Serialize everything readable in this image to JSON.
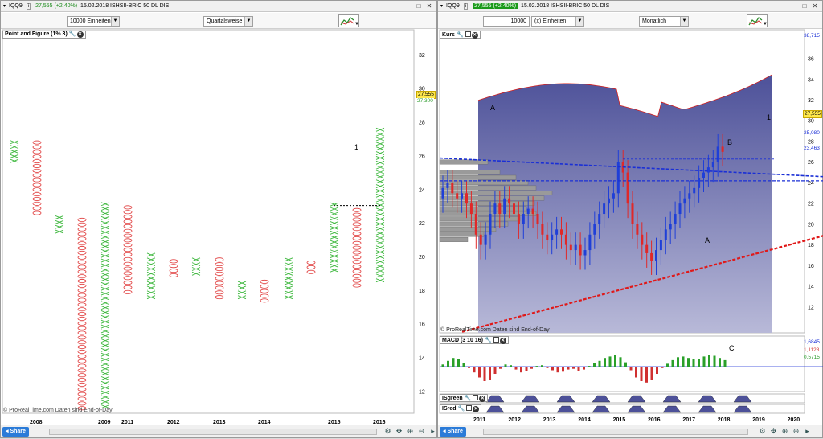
{
  "left": {
    "symbol": "IQQ9",
    "change": "27,555 (+2,40%)",
    "title": "15.02.2018 ISHSII-BRIC 50 DL DIS",
    "units": "10000 Einheiten",
    "period": "Quartalsweise",
    "panel_label": "Point and Figure (1% 3)",
    "copyright": "© ProRealTime.com  Daten sind End-of-Day",
    "price_last": "27,555",
    "price_other": "27,300",
    "share": "Share",
    "annotation": "1"
  },
  "right": {
    "symbol": "IQQ9",
    "change": "27,555 (+2,40%)",
    "title": "15.02.2018 ISHSII-BRIC 50 DL DIS",
    "units_value": "10000",
    "units_label": "(x) Einheiten",
    "period": "Monatlich",
    "panel_kurs": "Kurs",
    "panel_macd": "MACD (3 10 16)",
    "panel_isgreen": "ISgreen",
    "panel_isred": "ISred",
    "copyright": "© ProRealTime.com  Daten sind End-of-Day",
    "price_top": "38,715",
    "price_last": "27,555",
    "price_mid": "25,080",
    "price_low": "23,463",
    "macd_a": "1,6845",
    "macd_b": "1,1128",
    "macd_c": "0,5715",
    "share": "Share",
    "ann_A1": "A",
    "ann_A2": "A",
    "ann_1": "1",
    "ann_B": "B",
    "ann_C": "C"
  },
  "colors": {
    "x_col": "#3fb83f",
    "o_col": "#e03a3a",
    "blue_line": "#1a2fd6",
    "red_line": "#e01818",
    "cloud": "#5b5fa0"
  },
  "chart_data": [
    {
      "type": "point-and-figure",
      "title": "Point and Figure (1% 3)",
      "y_ticks": [
        12,
        14,
        16,
        18,
        20,
        22,
        24,
        26,
        28,
        30,
        32
      ],
      "x_ticks": [
        "2008",
        "2009",
        "2011",
        "2012",
        "2013",
        "2014",
        "2015",
        "2016"
      ],
      "ylim": [
        10.7,
        33.5
      ],
      "columns": [
        {
          "kind": "X",
          "low": 25.7,
          "high": 26.9
        },
        {
          "kind": "O",
          "low": 22.6,
          "high": 26.8
        },
        {
          "kind": "X",
          "low": 21.5,
          "high": 22.6
        },
        {
          "kind": "O",
          "low": 11.0,
          "high": 22.4
        },
        {
          "kind": "X",
          "low": 11.1,
          "high": 23.2
        },
        {
          "kind": "O",
          "low": 17.9,
          "high": 23.0
        },
        {
          "kind": "X",
          "low": 17.6,
          "high": 20.2
        },
        {
          "kind": "O",
          "low": 18.9,
          "high": 20.0
        },
        {
          "kind": "X",
          "low": 19.0,
          "high": 20.0
        },
        {
          "kind": "O",
          "low": 17.6,
          "high": 19.9
        },
        {
          "kind": "X",
          "low": 17.6,
          "high": 18.7
        },
        {
          "kind": "O",
          "low": 17.4,
          "high": 18.7
        },
        {
          "kind": "X",
          "low": 17.6,
          "high": 20.0
        },
        {
          "kind": "O",
          "low": 19.1,
          "high": 19.8
        },
        {
          "kind": "X",
          "low": 19.2,
          "high": 23.3
        },
        {
          "kind": "O",
          "low": 18.3,
          "high": 22.9
        },
        {
          "kind": "X",
          "low": 18.6,
          "high": 27.6
        }
      ]
    },
    {
      "type": "candlestick",
      "title": "Kurs",
      "y_ticks": [
        12,
        14,
        16,
        18,
        20,
        22,
        24,
        26,
        28,
        30,
        32,
        34,
        36
      ],
      "x_ticks": [
        "2011",
        "2012",
        "2013",
        "2014",
        "2015",
        "2016",
        "2017",
        "2018",
        "2019",
        "2020"
      ],
      "ylim": [
        9.5,
        38.8
      ]
    }
  ]
}
